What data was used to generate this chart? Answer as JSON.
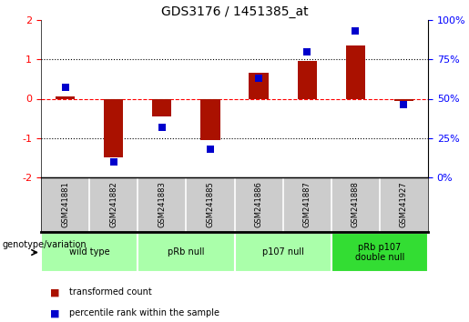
{
  "title": "GDS3176 / 1451385_at",
  "samples": [
    "GSM241881",
    "GSM241882",
    "GSM241883",
    "GSM241885",
    "GSM241886",
    "GSM241887",
    "GSM241888",
    "GSM241927"
  ],
  "transformed_count": [
    0.05,
    -1.5,
    -0.45,
    -1.05,
    0.65,
    0.95,
    1.35,
    -0.05
  ],
  "percentile_rank": [
    57,
    10,
    32,
    18,
    63,
    80,
    93,
    46
  ],
  "groups": [
    {
      "label": "wild type",
      "start": 0,
      "end": 1,
      "color": "#aaffaa"
    },
    {
      "label": "pRb null",
      "start": 2,
      "end": 3,
      "color": "#aaffaa"
    },
    {
      "label": "p107 null",
      "start": 4,
      "end": 5,
      "color": "#aaffaa"
    },
    {
      "label": "pRb p107\ndouble null",
      "start": 6,
      "end": 7,
      "color": "#33dd33"
    }
  ],
  "bar_color": "#aa1100",
  "dot_color": "#0000cc",
  "ylim_left": [
    -2,
    2
  ],
  "ylim_right": [
    0,
    100
  ],
  "yticks_left": [
    -2,
    -1,
    0,
    1,
    2
  ],
  "ytick_labels_left": [
    "-2",
    "-1",
    "0",
    "1",
    "2"
  ],
  "yticks_right_vals": [
    0,
    25,
    50,
    75,
    100
  ],
  "ytick_labels_right": [
    "0%",
    "25%",
    "50%",
    "75%",
    "100%"
  ],
  "hline_dotted": [
    -1,
    1
  ],
  "hline_dashed": [
    0
  ],
  "legend_items": [
    {
      "label": "transformed count",
      "color": "#aa1100"
    },
    {
      "label": "percentile rank within the sample",
      "color": "#0000cc"
    }
  ],
  "genotype_label": "genotype/variation",
  "sample_panel_bg": "#cccccc",
  "plot_bg": "#ffffff",
  "fig_bg": "#ffffff",
  "group_separator_color": "#333333",
  "bar_width": 0.4,
  "dot_size": 40
}
